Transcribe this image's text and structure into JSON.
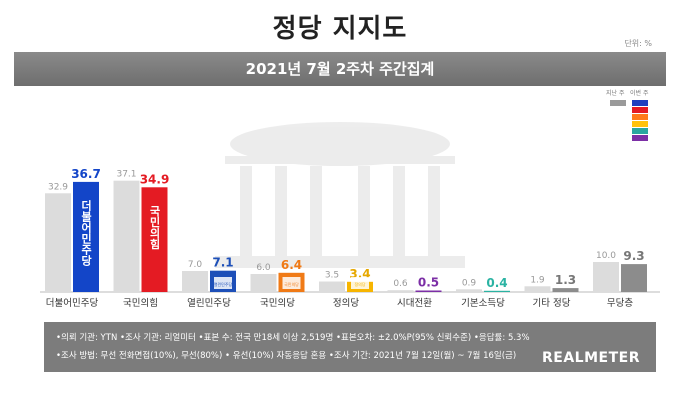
{
  "header": {
    "title": "정당 지지도",
    "unit": "단위: %"
  },
  "banner": {
    "text": "2021년 7월 2주차 주간집계"
  },
  "legend": {
    "prev": "지난 주",
    "this": "이번 주",
    "this_colors": [
      "#1f3fbf",
      "#e41b23",
      "#ff7a1a",
      "#ffc20e",
      "#2aa6a0",
      "#7c2fa6"
    ]
  },
  "chart_data": {
    "type": "bar",
    "categories": [
      "더불어민주당",
      "국민의힘",
      "열린민주당",
      "국민의당",
      "정의당",
      "시대전환",
      "기본소득당",
      "기타 정당",
      "무당층"
    ],
    "series": [
      {
        "name": "지난 주",
        "values": [
          32.9,
          37.1,
          7.0,
          6.0,
          3.5,
          0.6,
          0.9,
          1.9,
          10.0
        ]
      },
      {
        "name": "이번 주",
        "values": [
          36.7,
          34.9,
          7.1,
          6.4,
          3.4,
          0.5,
          0.4,
          1.3,
          9.3
        ]
      }
    ],
    "labels_prev": [
      "32.9",
      "37.1",
      "7.0",
      "6.0",
      "3.5",
      "0.6",
      "0.9",
      "1.9",
      "10.0"
    ],
    "labels_this": [
      "36.7",
      "34.9",
      "7.1",
      "6.4",
      "3.4",
      "0.5",
      "0.4",
      "1.3",
      "9.3"
    ],
    "colors_this": [
      "#1345c8",
      "#e41b23",
      "#1d4fb8",
      "#f07a16",
      "#f7b500",
      "#7c2fa6",
      "#2bb3a3",
      "#8c8c8c",
      "#8c8c8c"
    ],
    "label_colors_this": [
      "#1345c8",
      "#e41b23",
      "#1d4fb8",
      "#f07a16",
      "#e6a800",
      "#7c2fa6",
      "#2bb3a3",
      "#777777",
      "#777777"
    ],
    "color_prev": "#dcdcdc",
    "ylim": [
      0,
      40
    ],
    "logos": [
      "더불어민주당",
      "국민의힘",
      "열린민주당",
      "국민의당",
      "정의당"
    ]
  },
  "footer": {
    "line1": "•의뢰 기관: YTN  •조사 기관: 리얼미터  •표본 수: 전국 만18세 이상 2,519명  •표본오차: ±2.0%P(95% 신뢰수준)  •응답률: 5.3%",
    "line2": "•조사 방법: 무선 전화면접(10%), 무선(80%) • 유선(10%) 자동응답 혼용  •조사 기간: 2021년 7월 12일(월) ~ 7월 16일(금)",
    "brand": "REALMETER"
  }
}
